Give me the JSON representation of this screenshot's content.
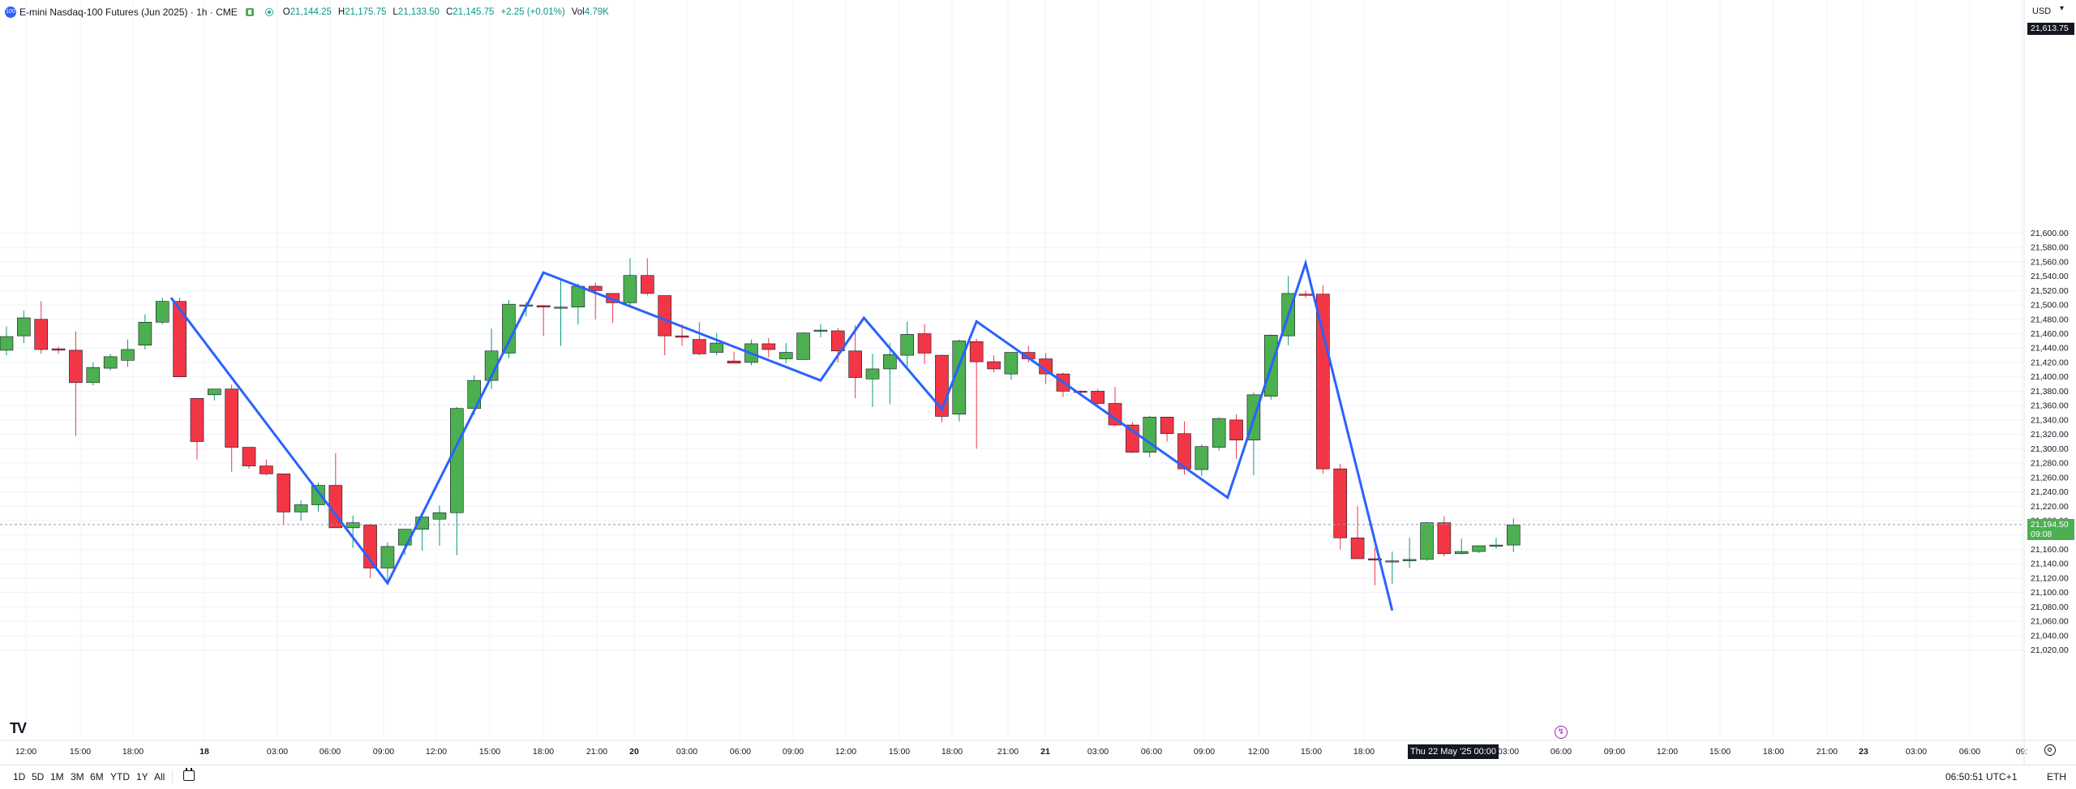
{
  "header": {
    "logo_text": "100",
    "symbol_title": "E-mini Nasdaq-100 Futures (Jun 2025) · 1h · CME",
    "open_key": "O",
    "open": "21,144.25",
    "high_key": "H",
    "high": "21,175.75",
    "low_key": "L",
    "low": "21,133.50",
    "close_key": "C",
    "close": "21,145.75",
    "change": "+2.25 (+0.01%)",
    "vol_key": "Vol",
    "volume": "4.79K"
  },
  "currency": "USD",
  "price_axis": {
    "top_tag": "21,613.75",
    "last_price": "21,194.50",
    "countdown": "09:08",
    "labels": [
      "21,600.00",
      "21,580.00",
      "21,560.00",
      "21,540.00",
      "21,520.00",
      "21,500.00",
      "21,480.00",
      "21,460.00",
      "21,440.00",
      "21,420.00",
      "21,400.00",
      "21,380.00",
      "21,360.00",
      "21,340.00",
      "21,320.00",
      "21,300.00",
      "21,280.00",
      "21,260.00",
      "21,240.00",
      "21,220.00",
      "21,200.00",
      "21,180.00",
      "21,160.00",
      "21,140.00",
      "21,120.00",
      "21,100.00",
      "21,080.00",
      "21,060.00",
      "21,040.00",
      "21,020.00"
    ]
  },
  "time_axis": {
    "labels": [
      "12:00",
      "15:00",
      "18:00",
      "18",
      "03:00",
      "06:00",
      "09:00",
      "12:00",
      "15:00",
      "18:00",
      "21:00",
      "20",
      "03:00",
      "06:00",
      "09:00",
      "12:00",
      "15:00",
      "18:00",
      "21:00",
      "21",
      "03:00",
      "06:00",
      "09:00",
      "12:00",
      "15:00",
      "18:00",
      "03:00",
      "06:00",
      "09:00",
      "12:00",
      "15:00",
      "18:00",
      "21:00",
      "23",
      "03:00",
      "06:00",
      "09:"
    ],
    "crosshair_label": "Thu 22 May '25   00:00"
  },
  "bottom_bar": {
    "ranges": [
      "1D",
      "5D",
      "1M",
      "3M",
      "6M",
      "YTD",
      "1Y",
      "All"
    ],
    "clock": "06:50:51 UTC+1",
    "session": "ETH"
  },
  "colors": {
    "up": "#4caf50",
    "down": "#f23645",
    "zigzag": "#2962ff",
    "wick_up": "#089981",
    "wick_down": "#f23645"
  },
  "chart_data": {
    "type": "candlestick",
    "title": "E-mini Nasdaq-100 Futures (Jun 2025) · 1h · CME",
    "interval": "1h",
    "ylim": [
      21010,
      21620
    ],
    "candles": [
      {
        "o": 21437,
        "h": 21470,
        "l": 21430,
        "c": 21456
      },
      {
        "o": 21457,
        "h": 21492,
        "l": 21447,
        "c": 21482
      },
      {
        "o": 21480,
        "h": 21505,
        "l": 21432,
        "c": 21438
      },
      {
        "o": 21439,
        "h": 21442,
        "l": 21432,
        "c": 21437
      },
      {
        "o": 21437,
        "h": 21463,
        "l": 21318,
        "c": 21392
      },
      {
        "o": 21392,
        "h": 21420,
        "l": 21388,
        "c": 21413
      },
      {
        "o": 21412,
        "h": 21432,
        "l": 21409,
        "c": 21428
      },
      {
        "o": 21423,
        "h": 21452,
        "l": 21414,
        "c": 21438
      },
      {
        "o": 21444,
        "h": 21487,
        "l": 21438,
        "c": 21476
      },
      {
        "o": 21476,
        "h": 21510,
        "l": 21473,
        "c": 21505
      },
      {
        "o": 21505,
        "h": 21510,
        "l": 21400,
        "c": 21400
      },
      {
        "o": 21370,
        "h": 21370,
        "l": 21285,
        "c": 21310
      },
      {
        "o": 21375,
        "h": 21383,
        "l": 21367,
        "c": 21383
      },
      {
        "o": 21383,
        "h": 21389,
        "l": 21268,
        "c": 21302
      },
      {
        "o": 21302,
        "h": 21302,
        "l": 21272,
        "c": 21276
      },
      {
        "o": 21276,
        "h": 21285,
        "l": 21263,
        "c": 21265
      },
      {
        "o": 21265,
        "h": 21265,
        "l": 21195,
        "c": 21212
      },
      {
        "o": 21212,
        "h": 21228,
        "l": 21200,
        "c": 21222
      },
      {
        "o": 21222,
        "h": 21253,
        "l": 21212,
        "c": 21249
      },
      {
        "o": 21249,
        "h": 21294,
        "l": 21190,
        "c": 21190
      },
      {
        "o": 21190,
        "h": 21207,
        "l": 21162,
        "c": 21197
      },
      {
        "o": 21194,
        "h": 21196,
        "l": 21120,
        "c": 21134
      },
      {
        "o": 21134,
        "h": 21170,
        "l": 21112,
        "c": 21164
      },
      {
        "o": 21166,
        "h": 21188,
        "l": 21152,
        "c": 21188
      },
      {
        "o": 21188,
        "h": 21210,
        "l": 21158,
        "c": 21205
      },
      {
        "o": 21202,
        "h": 21221,
        "l": 21165,
        "c": 21211
      },
      {
        "o": 21211,
        "h": 21358,
        "l": 21152,
        "c": 21356
      },
      {
        "o": 21356,
        "h": 21402,
        "l": 21347,
        "c": 21395
      },
      {
        "o": 21395,
        "h": 21467,
        "l": 21383,
        "c": 21436
      },
      {
        "o": 21433,
        "h": 21507,
        "l": 21426,
        "c": 21501
      },
      {
        "o": 21500,
        "h": 21504,
        "l": 21484,
        "c": 21500
      },
      {
        "o": 21499,
        "h": 21500,
        "l": 21457,
        "c": 21497
      },
      {
        "o": 21497,
        "h": 21536,
        "l": 21443,
        "c": 21497
      },
      {
        "o": 21497,
        "h": 21530,
        "l": 21473,
        "c": 21526
      },
      {
        "o": 21526,
        "h": 21531,
        "l": 21480,
        "c": 21520
      },
      {
        "o": 21516,
        "h": 21516,
        "l": 21475,
        "c": 21503
      },
      {
        "o": 21503,
        "h": 21565,
        "l": 21498,
        "c": 21541
      },
      {
        "o": 21541,
        "h": 21565,
        "l": 21513,
        "c": 21516
      },
      {
        "o": 21513,
        "h": 21513,
        "l": 21430,
        "c": 21457
      },
      {
        "o": 21457,
        "h": 21473,
        "l": 21443,
        "c": 21455
      },
      {
        "o": 21452,
        "h": 21476,
        "l": 21430,
        "c": 21432
      },
      {
        "o": 21434,
        "h": 21461,
        "l": 21430,
        "c": 21447
      },
      {
        "o": 21422,
        "h": 21435,
        "l": 21419,
        "c": 21419
      },
      {
        "o": 21420,
        "h": 21452,
        "l": 21416,
        "c": 21446
      },
      {
        "o": 21446,
        "h": 21454,
        "l": 21427,
        "c": 21438
      },
      {
        "o": 21425,
        "h": 21447,
        "l": 21419,
        "c": 21434
      },
      {
        "o": 21424,
        "h": 21462,
        "l": 21424,
        "c": 21461
      },
      {
        "o": 21465,
        "h": 21473,
        "l": 21455,
        "c": 21465
      },
      {
        "o": 21464,
        "h": 21468,
        "l": 21420,
        "c": 21436
      },
      {
        "o": 21436,
        "h": 21472,
        "l": 21370,
        "c": 21399
      },
      {
        "o": 21397,
        "h": 21432,
        "l": 21358,
        "c": 21411
      },
      {
        "o": 21411,
        "h": 21447,
        "l": 21362,
        "c": 21431
      },
      {
        "o": 21430,
        "h": 21477,
        "l": 21410,
        "c": 21459
      },
      {
        "o": 21460,
        "h": 21473,
        "l": 21418,
        "c": 21433
      },
      {
        "o": 21430,
        "h": 21431,
        "l": 21337,
        "c": 21345
      },
      {
        "o": 21348,
        "h": 21452,
        "l": 21338,
        "c": 21450
      },
      {
        "o": 21449,
        "h": 21453,
        "l": 21300,
        "c": 21421
      },
      {
        "o": 21421,
        "h": 21430,
        "l": 21406,
        "c": 21411
      },
      {
        "o": 21404,
        "h": 21434,
        "l": 21396,
        "c": 21434
      },
      {
        "o": 21434,
        "h": 21443,
        "l": 21420,
        "c": 21425
      },
      {
        "o": 21425,
        "h": 21433,
        "l": 21390,
        "c": 21404
      },
      {
        "o": 21404,
        "h": 21406,
        "l": 21372,
        "c": 21380
      },
      {
        "o": 21380,
        "h": 21381,
        "l": 21374,
        "c": 21379
      },
      {
        "o": 21380,
        "h": 21383,
        "l": 21357,
        "c": 21363
      },
      {
        "o": 21363,
        "h": 21386,
        "l": 21331,
        "c": 21333
      },
      {
        "o": 21333,
        "h": 21337,
        "l": 21294,
        "c": 21295
      },
      {
        "o": 21295,
        "h": 21346,
        "l": 21288,
        "c": 21344
      },
      {
        "o": 21344,
        "h": 21344,
        "l": 21310,
        "c": 21321
      },
      {
        "o": 21321,
        "h": 21338,
        "l": 21264,
        "c": 21272
      },
      {
        "o": 21271,
        "h": 21306,
        "l": 21262,
        "c": 21303
      },
      {
        "o": 21302,
        "h": 21344,
        "l": 21297,
        "c": 21342
      },
      {
        "o": 21340,
        "h": 21348,
        "l": 21286,
        "c": 21312
      },
      {
        "o": 21312,
        "h": 21378,
        "l": 21263,
        "c": 21375
      },
      {
        "o": 21373,
        "h": 21459,
        "l": 21368,
        "c": 21458
      },
      {
        "o": 21457,
        "h": 21540,
        "l": 21444,
        "c": 21516
      },
      {
        "o": 21515,
        "h": 21520,
        "l": 21510,
        "c": 21514
      },
      {
        "o": 21515,
        "h": 21527,
        "l": 21265,
        "c": 21272
      },
      {
        "o": 21272,
        "h": 21279,
        "l": 21160,
        "c": 21176
      },
      {
        "o": 21176,
        "h": 21220,
        "l": 21147,
        "c": 21147
      },
      {
        "o": 21147,
        "h": 21162,
        "l": 21110,
        "c": 21145
      },
      {
        "o": 21144,
        "h": 21157,
        "l": 21112,
        "c": 21144
      },
      {
        "o": 21144,
        "h": 21176,
        "l": 21134,
        "c": 21146
      },
      {
        "o": 21146,
        "h": 21198,
        "l": 21144,
        "c": 21197
      },
      {
        "o": 21197,
        "h": 21206,
        "l": 21150,
        "c": 21154
      },
      {
        "o": 21154,
        "h": 21175,
        "l": 21153,
        "c": 21157
      },
      {
        "o": 21157,
        "h": 21165,
        "l": 21155,
        "c": 21165
      },
      {
        "o": 21165,
        "h": 21176,
        "l": 21161,
        "c": 21166
      },
      {
        "o": 21166,
        "h": 21203,
        "l": 21156,
        "c": 21194
      }
    ],
    "zigzag_index": [
      9.5,
      22,
      31,
      47,
      49.5,
      54,
      56,
      70.5,
      75,
      80
    ],
    "zigzag_price": [
      21510,
      21113,
      21545,
      21395,
      21482,
      21355,
      21477,
      21232,
      21558,
      21075
    ],
    "crosshair_price": 21194.5
  }
}
